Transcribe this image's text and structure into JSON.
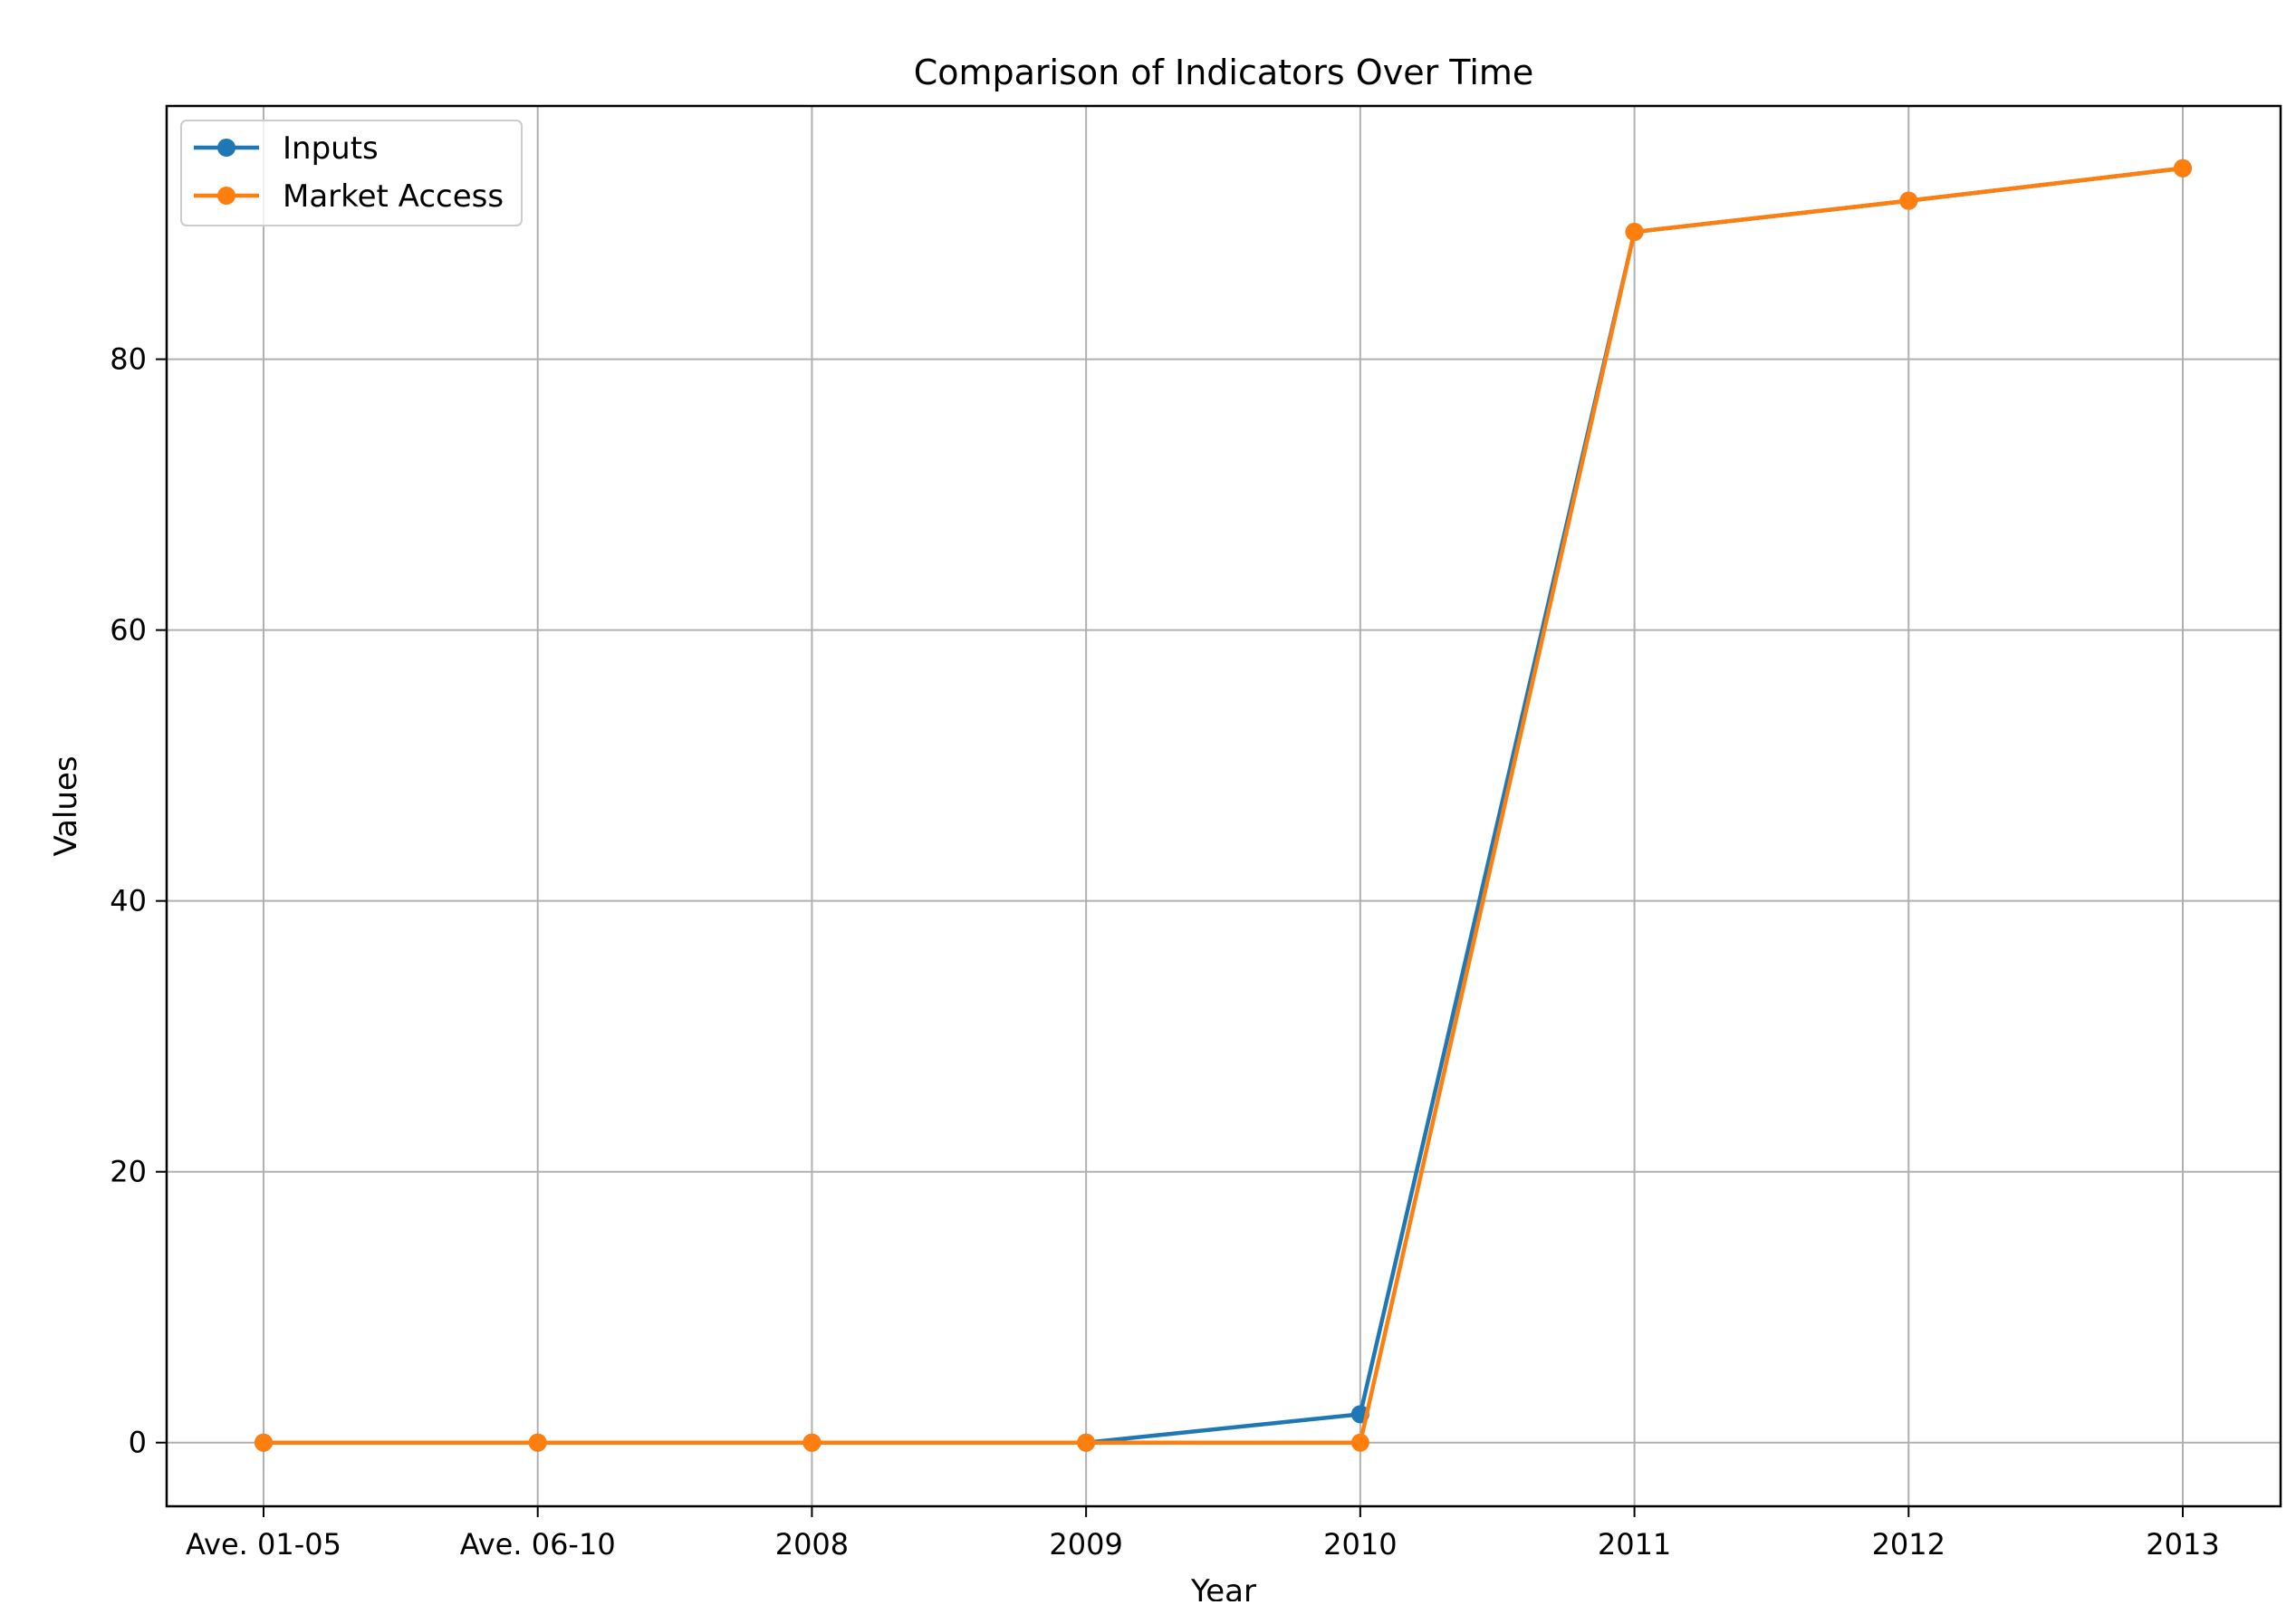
{
  "chart_data": {
    "type": "line",
    "title": "Comparison of Indicators Over Time",
    "xlabel": "Year",
    "ylabel": "Values",
    "categories": [
      "Ave. 01-05",
      "Ave. 06-10",
      "2008",
      "2009",
      "2010",
      "2011",
      "2012",
      "2013"
    ],
    "ylim": [
      -4.7,
      98.7
    ],
    "yticks": [
      0,
      20,
      40,
      60,
      80
    ],
    "grid": true,
    "legend_position": "top-left",
    "series": [
      {
        "name": "Inputs",
        "color": "#1f77b4",
        "marker": "circle",
        "values": [
          0,
          0,
          0,
          0,
          2.1,
          89.4,
          91.7,
          94.1
        ]
      },
      {
        "name": "Market Access",
        "color": "#ff7f0e",
        "marker": "circle",
        "values": [
          0,
          0,
          0,
          0,
          0,
          89.4,
          91.7,
          94.1
        ]
      }
    ]
  }
}
